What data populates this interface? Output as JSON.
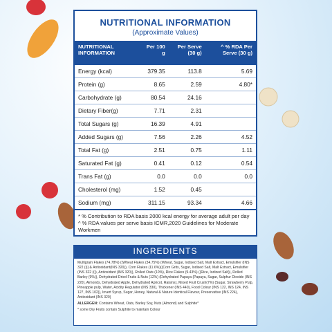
{
  "nutrition": {
    "title": "NUTRITIONAL INFORMATION",
    "subtitle": "(Approximate Values)",
    "header": [
      "NUTRITIONAL INFORMATION",
      "Per 100 g",
      "Per Serve (30 g)",
      "^ % RDA Per Serve (30 g)"
    ],
    "rows": [
      [
        "Energy (kcal)",
        "379.35",
        "113.8",
        "5.69"
      ],
      [
        "Protein (g)",
        "8.65",
        "2.59",
        "4.80*"
      ],
      [
        "Carbohydrate (g)",
        "80.54",
        "24.16"
      ],
      [
        "Dietary Fiber(g)",
        "7.71",
        "2.31"
      ],
      [
        "Total Sugars (g)",
        "16.39",
        "4.91"
      ],
      [
        "Added Sugars (g)",
        "7.56",
        "2.26",
        "4.52"
      ],
      [
        "Total Fat (g)",
        "2.51",
        "0.75",
        "1.11"
      ],
      [
        "Saturated Fat (g)",
        "0.41",
        "0.12",
        "0.54"
      ],
      [
        "Trans Fat (g)",
        "0.0",
        "0.0",
        "0.0"
      ],
      [
        "Cholesterol (mg)",
        "1.52",
        "0.45"
      ],
      [
        "Sodium (mg)",
        "311.15",
        "93.34",
        "4.66"
      ]
    ],
    "footnotes": [
      "* % Contribution to RDA basis 2000 kcal energy for average adult per day",
      "^ % RDA values per serve basis ICMR,2020 Guidelines for Moderate Workmen"
    ]
  },
  "ingredients": {
    "title": "INGREDIENTS",
    "text": "Multigrain Flakes (74.78%) ((Wheat Flakes (34.75%) (Wheat, Sugar, Iodised Salt, Malt Extract, Emulsifier (INS 322 (i)) & Antioxidant(INS 320)), Corn Flakes (11.6%)((Corn Grits, Sugar, Iodised Salt, Malt Extract, Emulsifier (INS 322 (i)), Antioxidant (INS 320)), Rolled Oats (10%), Rice Flakes (9.43%) ((Rice, Iodized Salt)), Rolled Barley (9%)), Dehydrated Dried Fruits & Nuts (12%) (Dehydrated Papaya (Papaya, Sugar, Sulphur Dioxide (INS 220), Almonds, Dehydrated Apple, Dehydrated Apricot, Raisins), Mixed Fruit Crush(7%) (Sugar, Strawberry Pulp, Pineapple pulp, Water, Acidity Regulator (INS 330), Thickener (INS 440), Food Colour (INS 122, INS 124, INS 127, INS 102)), Invert Syrup, Sugar, Honey, Natural & Nature Identical Flavour, Preservative (INS 224), Antioxidant (INS 320)",
    "allergen_label": "ALLERGEN:",
    "allergen_text": "Contains Wheat, Oats, Barley Soy, Nuts (Almond) and Sulphite*",
    "note": "* some Dry Fruits contain Sulphite to maintain Colour"
  }
}
